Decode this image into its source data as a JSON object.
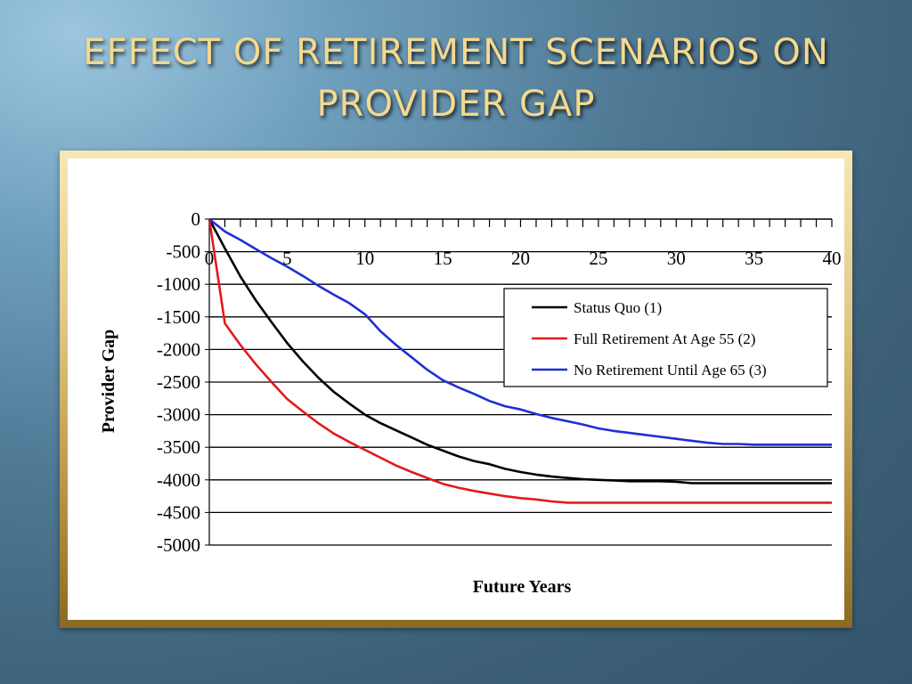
{
  "slide": {
    "title_lines": [
      "EFFECT OF RETIREMENT SCENARIOS ON",
      "PROVIDER GAP"
    ]
  },
  "colors": {
    "title": "#f4d98e",
    "status_quo": "#000000",
    "full_retirement": "#e31a1c",
    "no_retirement": "#1f2fd6"
  },
  "chart_data": {
    "type": "line",
    "title": "",
    "xlabel": "Future Years",
    "ylabel": "Provider Gap",
    "xlim": [
      0,
      40
    ],
    "ylim": [
      -5000,
      0
    ],
    "x_ticks": [
      0,
      5,
      10,
      15,
      20,
      25,
      30,
      35,
      40
    ],
    "y_ticks": [
      0,
      -500,
      -1000,
      -1500,
      -2000,
      -2500,
      -3000,
      -3500,
      -4000,
      -4500,
      -5000
    ],
    "grid": true,
    "legend": "right",
    "x": [
      0,
      1,
      2,
      3,
      4,
      5,
      6,
      7,
      8,
      9,
      10,
      11,
      12,
      13,
      14,
      15,
      16,
      17,
      18,
      19,
      20,
      21,
      22,
      23,
      24,
      25,
      26,
      27,
      28,
      29,
      30,
      31,
      32,
      33,
      34,
      35,
      36,
      37,
      38,
      39,
      40
    ],
    "series": [
      {
        "name": "Status Quo (1)",
        "color": "#000000",
        "values": [
          0,
          -450,
          -880,
          -1250,
          -1580,
          -1900,
          -2180,
          -2430,
          -2650,
          -2830,
          -3000,
          -3130,
          -3240,
          -3350,
          -3460,
          -3550,
          -3640,
          -3710,
          -3760,
          -3830,
          -3880,
          -3920,
          -3950,
          -3970,
          -3990,
          -4000,
          -4010,
          -4020,
          -4020,
          -4020,
          -4030,
          -4050,
          -4050,
          -4050,
          -4050,
          -4050,
          -4050,
          -4050,
          -4050,
          -4050,
          -4050
        ]
      },
      {
        "name": "Full Retirement At Age 55 (2)",
        "color": "#e31a1c",
        "values": [
          0,
          -1600,
          -1930,
          -2230,
          -2500,
          -2760,
          -2950,
          -3130,
          -3290,
          -3420,
          -3540,
          -3660,
          -3780,
          -3880,
          -3970,
          -4060,
          -4120,
          -4170,
          -4210,
          -4250,
          -4280,
          -4300,
          -4330,
          -4350,
          -4350,
          -4350,
          -4350,
          -4350,
          -4350,
          -4350,
          -4350,
          -4350,
          -4350,
          -4350,
          -4350,
          -4350,
          -4350,
          -4350,
          -4350,
          -4350,
          -4350
        ]
      },
      {
        "name": "No Retirement Until Age 65 (3)",
        "color": "#1f2fd6",
        "values": [
          0,
          -190,
          -320,
          -460,
          -600,
          -730,
          -870,
          -1020,
          -1160,
          -1290,
          -1460,
          -1720,
          -1930,
          -2120,
          -2310,
          -2470,
          -2580,
          -2680,
          -2790,
          -2870,
          -2920,
          -2990,
          -3050,
          -3100,
          -3150,
          -3210,
          -3250,
          -3280,
          -3310,
          -3340,
          -3370,
          -3400,
          -3430,
          -3450,
          -3450,
          -3460,
          -3460,
          -3460,
          -3460,
          -3460,
          -3460
        ]
      }
    ]
  }
}
